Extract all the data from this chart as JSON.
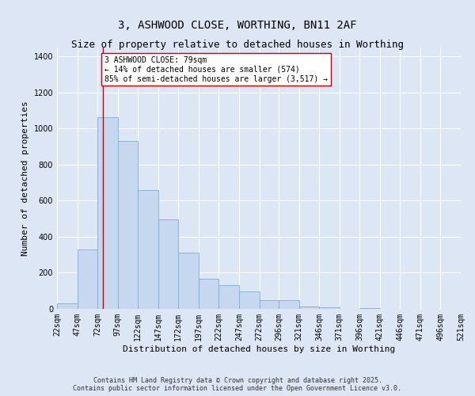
{
  "title_line1": "3, ASHWOOD CLOSE, WORTHING, BN11 2AF",
  "title_line2": "Size of property relative to detached houses in Worthing",
  "xlabel": "Distribution of detached houses by size in Worthing",
  "ylabel": "Number of detached properties",
  "bar_color": "#c5d8f0",
  "bar_edge_color": "#7bafd4",
  "background_color": "#dce6f5",
  "grid_color": "#ffffff",
  "bin_edges": [
    22,
    47,
    72,
    97,
    122,
    147,
    172,
    197,
    222,
    247,
    272,
    296,
    321,
    346,
    371,
    396,
    421,
    446,
    471,
    496,
    521
  ],
  "bin_labels": [
    "22sqm",
    "47sqm",
    "72sqm",
    "97sqm",
    "122sqm",
    "147sqm",
    "172sqm",
    "197sqm",
    "222sqm",
    "247sqm",
    "272sqm",
    "296sqm",
    "321sqm",
    "346sqm",
    "371sqm",
    "396sqm",
    "421sqm",
    "446sqm",
    "471sqm",
    "496sqm",
    "521sqm"
  ],
  "values": [
    30,
    330,
    1065,
    930,
    660,
    495,
    310,
    165,
    130,
    95,
    50,
    50,
    15,
    10,
    0,
    5,
    0,
    0,
    0,
    0
  ],
  "property_size": 79,
  "property_line_color": "#cc0000",
  "annotation_text": "3 ASHWOOD CLOSE: 79sqm\n← 14% of detached houses are smaller (574)\n85% of semi-detached houses are larger (3,517) →",
  "annotation_box_color": "#ffffff",
  "annotation_box_edge_color": "#cc0000",
  "ylim": [
    0,
    1450
  ],
  "ytick_interval": 200,
  "footer_text": "Contains HM Land Registry data © Crown copyright and database right 2025.\nContains public sector information licensed under the Open Government Licence v3.0.",
  "title_fontsize": 10,
  "subtitle_fontsize": 9,
  "axis_label_fontsize": 8,
  "tick_fontsize": 7,
  "annotation_fontsize": 7,
  "footer_fontsize": 6
}
